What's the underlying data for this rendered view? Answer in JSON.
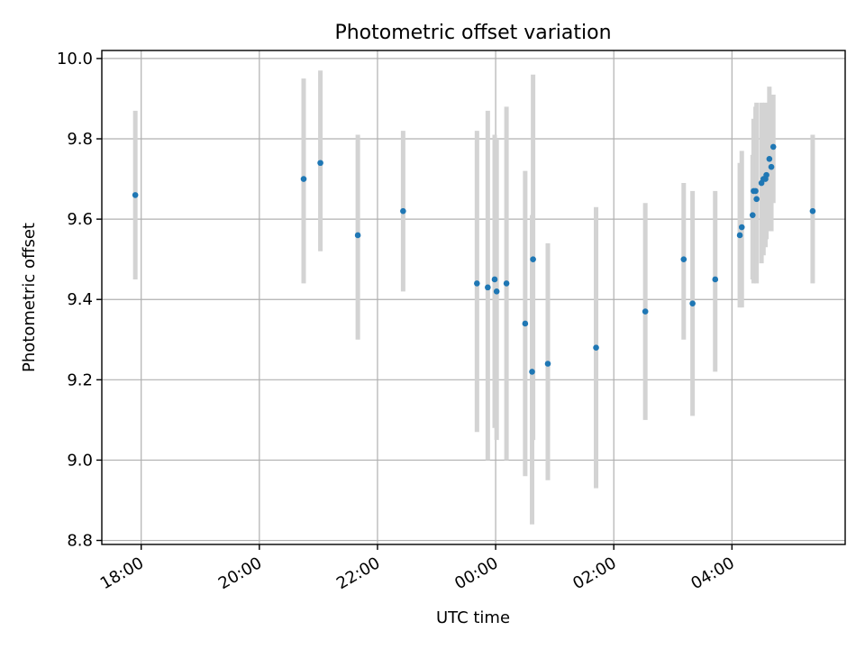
{
  "chart_data": {
    "type": "scatter",
    "title": "Photometric offset variation",
    "xlabel": "UTC time",
    "ylabel": "Photometric offset",
    "x_axis_type": "time",
    "xlim": [
      "17:20",
      "05:55"
    ],
    "ylim": [
      8.79,
      10.02
    ],
    "x_ticks": [
      "18:00",
      "20:00",
      "22:00",
      "00:00",
      "02:00",
      "04:00"
    ],
    "y_ticks": [
      8.8,
      9.0,
      9.2,
      9.4,
      9.6,
      9.8,
      10.0
    ],
    "y_tick_labels": [
      "8.8",
      "9.0",
      "9.2",
      "9.4",
      "9.6",
      "9.8",
      "10.0"
    ],
    "grid": true,
    "legend": "none",
    "error_bar_color": "#d3d3d3",
    "point_color": "#1f77b4",
    "series": [
      {
        "points": [
          {
            "x": "17:54",
            "y": 9.66,
            "ylow": 9.45,
            "yhigh": 9.87
          },
          {
            "x": "20:45",
            "y": 9.7,
            "ylow": 9.44,
            "yhigh": 9.95
          },
          {
            "x": "21:02",
            "y": 9.74,
            "ylow": 9.52,
            "yhigh": 9.97
          },
          {
            "x": "21:40",
            "y": 9.56,
            "ylow": 9.3,
            "yhigh": 9.81
          },
          {
            "x": "22:26",
            "y": 9.62,
            "ylow": 9.42,
            "yhigh": 9.82
          },
          {
            "x": "23:41",
            "y": 9.44,
            "ylow": 9.07,
            "yhigh": 9.82
          },
          {
            "x": "23:52",
            "y": 9.43,
            "ylow": 9.0,
            "yhigh": 9.87
          },
          {
            "x": "23:59",
            "y": 9.45,
            "ylow": 9.08,
            "yhigh": 9.81
          },
          {
            "x": "00:01",
            "y": 9.42,
            "ylow": 9.05,
            "yhigh": 9.8
          },
          {
            "x": "00:11",
            "y": 9.44,
            "ylow": 9.0,
            "yhigh": 9.88
          },
          {
            "x": "00:30",
            "y": 9.34,
            "ylow": 8.96,
            "yhigh": 9.72
          },
          {
            "x": "00:37",
            "y": 9.22,
            "ylow": 8.84,
            "yhigh": 9.61
          },
          {
            "x": "00:38",
            "y": 9.5,
            "ylow": 9.05,
            "yhigh": 9.96
          },
          {
            "x": "00:53",
            "y": 9.24,
            "ylow": 8.95,
            "yhigh": 9.54
          },
          {
            "x": "01:42",
            "y": 9.28,
            "ylow": 8.93,
            "yhigh": 9.63
          },
          {
            "x": "02:32",
            "y": 9.37,
            "ylow": 9.1,
            "yhigh": 9.64
          },
          {
            "x": "03:11",
            "y": 9.5,
            "ylow": 9.3,
            "yhigh": 9.69
          },
          {
            "x": "03:20",
            "y": 9.39,
            "ylow": 9.11,
            "yhigh": 9.67
          },
          {
            "x": "03:43",
            "y": 9.45,
            "ylow": 9.22,
            "yhigh": 9.67
          },
          {
            "x": "04:08",
            "y": 9.56,
            "ylow": 9.38,
            "yhigh": 9.74
          },
          {
            "x": "04:10",
            "y": 9.58,
            "ylow": 9.38,
            "yhigh": 9.77
          },
          {
            "x": "04:21",
            "y": 9.61,
            "ylow": 9.45,
            "yhigh": 9.76
          },
          {
            "x": "04:22",
            "y": 9.67,
            "ylow": 9.44,
            "yhigh": 9.85
          },
          {
            "x": "04:24",
            "y": 9.67,
            "ylow": 9.45,
            "yhigh": 9.88
          },
          {
            "x": "04:25",
            "y": 9.65,
            "ylow": 9.44,
            "yhigh": 9.89
          },
          {
            "x": "04:30",
            "y": 9.69,
            "ylow": 9.49,
            "yhigh": 9.89
          },
          {
            "x": "04:32",
            "y": 9.7,
            "ylow": 9.51,
            "yhigh": 9.88
          },
          {
            "x": "04:34",
            "y": 9.7,
            "ylow": 9.53,
            "yhigh": 9.89
          },
          {
            "x": "04:35",
            "y": 9.71,
            "ylow": 9.55,
            "yhigh": 9.87
          },
          {
            "x": "04:38",
            "y": 9.75,
            "ylow": 9.57,
            "yhigh": 9.93
          },
          {
            "x": "04:40",
            "y": 9.73,
            "ylow": 9.57,
            "yhigh": 9.9
          },
          {
            "x": "04:42",
            "y": 9.78,
            "ylow": 9.64,
            "yhigh": 9.91
          },
          {
            "x": "05:22",
            "y": 9.62,
            "ylow": 9.44,
            "yhigh": 9.81
          }
        ]
      }
    ]
  }
}
